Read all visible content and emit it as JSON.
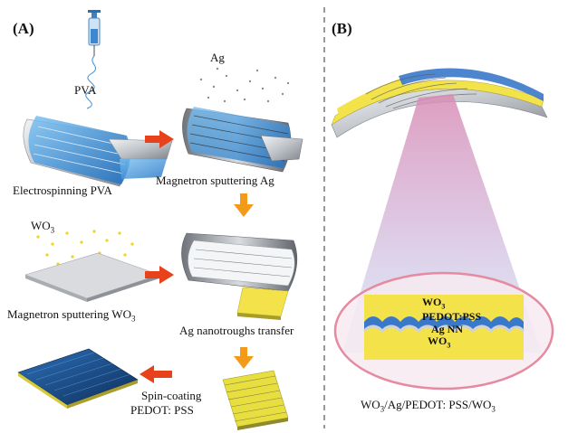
{
  "panels": {
    "a": "(A)",
    "b": "(B)"
  },
  "steps": {
    "pva_label": "PVA",
    "ag_label": "Ag",
    "electrospinning": "Electrospinning PVA",
    "sputter_ag": "Magnetron sputtering Ag",
    "wo3_label": "WO",
    "wo3_sub": "3",
    "sputter_wo3": "Magnetron sputtering WO",
    "sputter_wo3_sub": "3",
    "transfer": "Ag nanotroughs transfer",
    "spin_line1": "Spin-coating",
    "spin_line2": "PEDOT: PSS"
  },
  "layers": {
    "wo3_top": "WO",
    "wo3_top_sub": "3",
    "pedot": "PEDOT:PSS",
    "agnn": "Ag NN",
    "wo3_bottom": "WO",
    "wo3_bottom_sub": "3"
  },
  "structure": {
    "p1": "WO",
    "s1": "3",
    "p2": "/Ag/PEDOT: PSS/WO",
    "s2": "3"
  },
  "colors": {
    "arrow": "#e8421c",
    "arrow_down": "#f39a1a",
    "wo3_yellow": "#f4e24a",
    "pedot_blue": "#3a78c9",
    "fiber_blue": "#2f86d8",
    "silver": "#c9ccd0",
    "cone_pink": "#e7a9c4",
    "ring": "#e58aa0"
  }
}
